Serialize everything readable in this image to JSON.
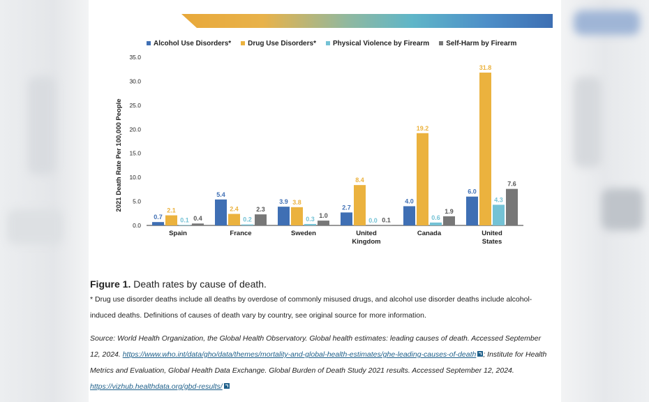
{
  "chart_data": {
    "type": "bar",
    "categories": [
      [
        "Spain"
      ],
      [
        "France"
      ],
      [
        "Sweden"
      ],
      [
        "United",
        "Kingdom"
      ],
      [
        "Canada"
      ],
      [
        "United",
        "States"
      ]
    ],
    "series": [
      {
        "name": "Alcohol Use Disorders*",
        "color": "#3f6fb4",
        "values": [
          0.7,
          5.4,
          3.9,
          2.7,
          4.0,
          6.0
        ],
        "labels": [
          "0.7",
          "5.4",
          "3.9",
          "2.7",
          "4.0",
          "6.0"
        ]
      },
      {
        "name": "Drug Use Disorders*",
        "color": "#ebb23e",
        "values": [
          2.1,
          2.4,
          3.8,
          8.4,
          19.2,
          31.8
        ],
        "labels": [
          "2.1",
          "2.4",
          "3.8",
          "8.4",
          "19.2",
          "31.8"
        ]
      },
      {
        "name": "Physical Violence by Firearm",
        "color": "#74c2d5",
        "values": [
          0.1,
          0.2,
          0.3,
          0.0,
          0.6,
          4.3
        ],
        "labels": [
          "0.1",
          "0.2",
          "0.3",
          "0.0",
          "0.6",
          "4.3"
        ]
      },
      {
        "name": "Self-Harm by Firearm",
        "color": "#777777",
        "values": [
          0.4,
          2.3,
          1.0,
          0.1,
          1.9,
          7.6
        ],
        "labels": [
          "0.4",
          "2.3",
          "1.0",
          "0.1",
          "1.9",
          "7.6"
        ]
      }
    ],
    "ylabel": "2021 Death Rate Per 100,000 People",
    "ylim": [
      0,
      35
    ],
    "yticks": [
      "0.0",
      "5.0",
      "10.0",
      "15.0",
      "20.0",
      "25.0",
      "30.0",
      "35.0"
    ],
    "legend_position": "top",
    "grid": false
  },
  "caption": {
    "figure_label": "Figure 1.",
    "figure_title": "Death rates by cause of death.",
    "note": "* Drug use disorder deaths include all deaths by overdose of commonly misused drugs, and alcohol use disorder deaths include alcohol-induced deaths. Definitions of causes of death vary by country, see original source for more information.",
    "source_prefix": "Source: World Health Organization, the Global Health Observatory. Global health estimates: leading causes of death. Accessed September 12, 2024. ",
    "source_link1": "https://www.who.int/data/gho/data/themes/mortality-and-global-health-estimates/ghe-leading-causes-of-death",
    "source_middle": "; Institute for Health Metrics and Evaluation, Global Health Data Exchange. Global Burden of Death Study 2021 results. Accessed September 12, 2024.",
    "source_link2": "https://vizhub.healthdata.org/gbd-results/"
  }
}
